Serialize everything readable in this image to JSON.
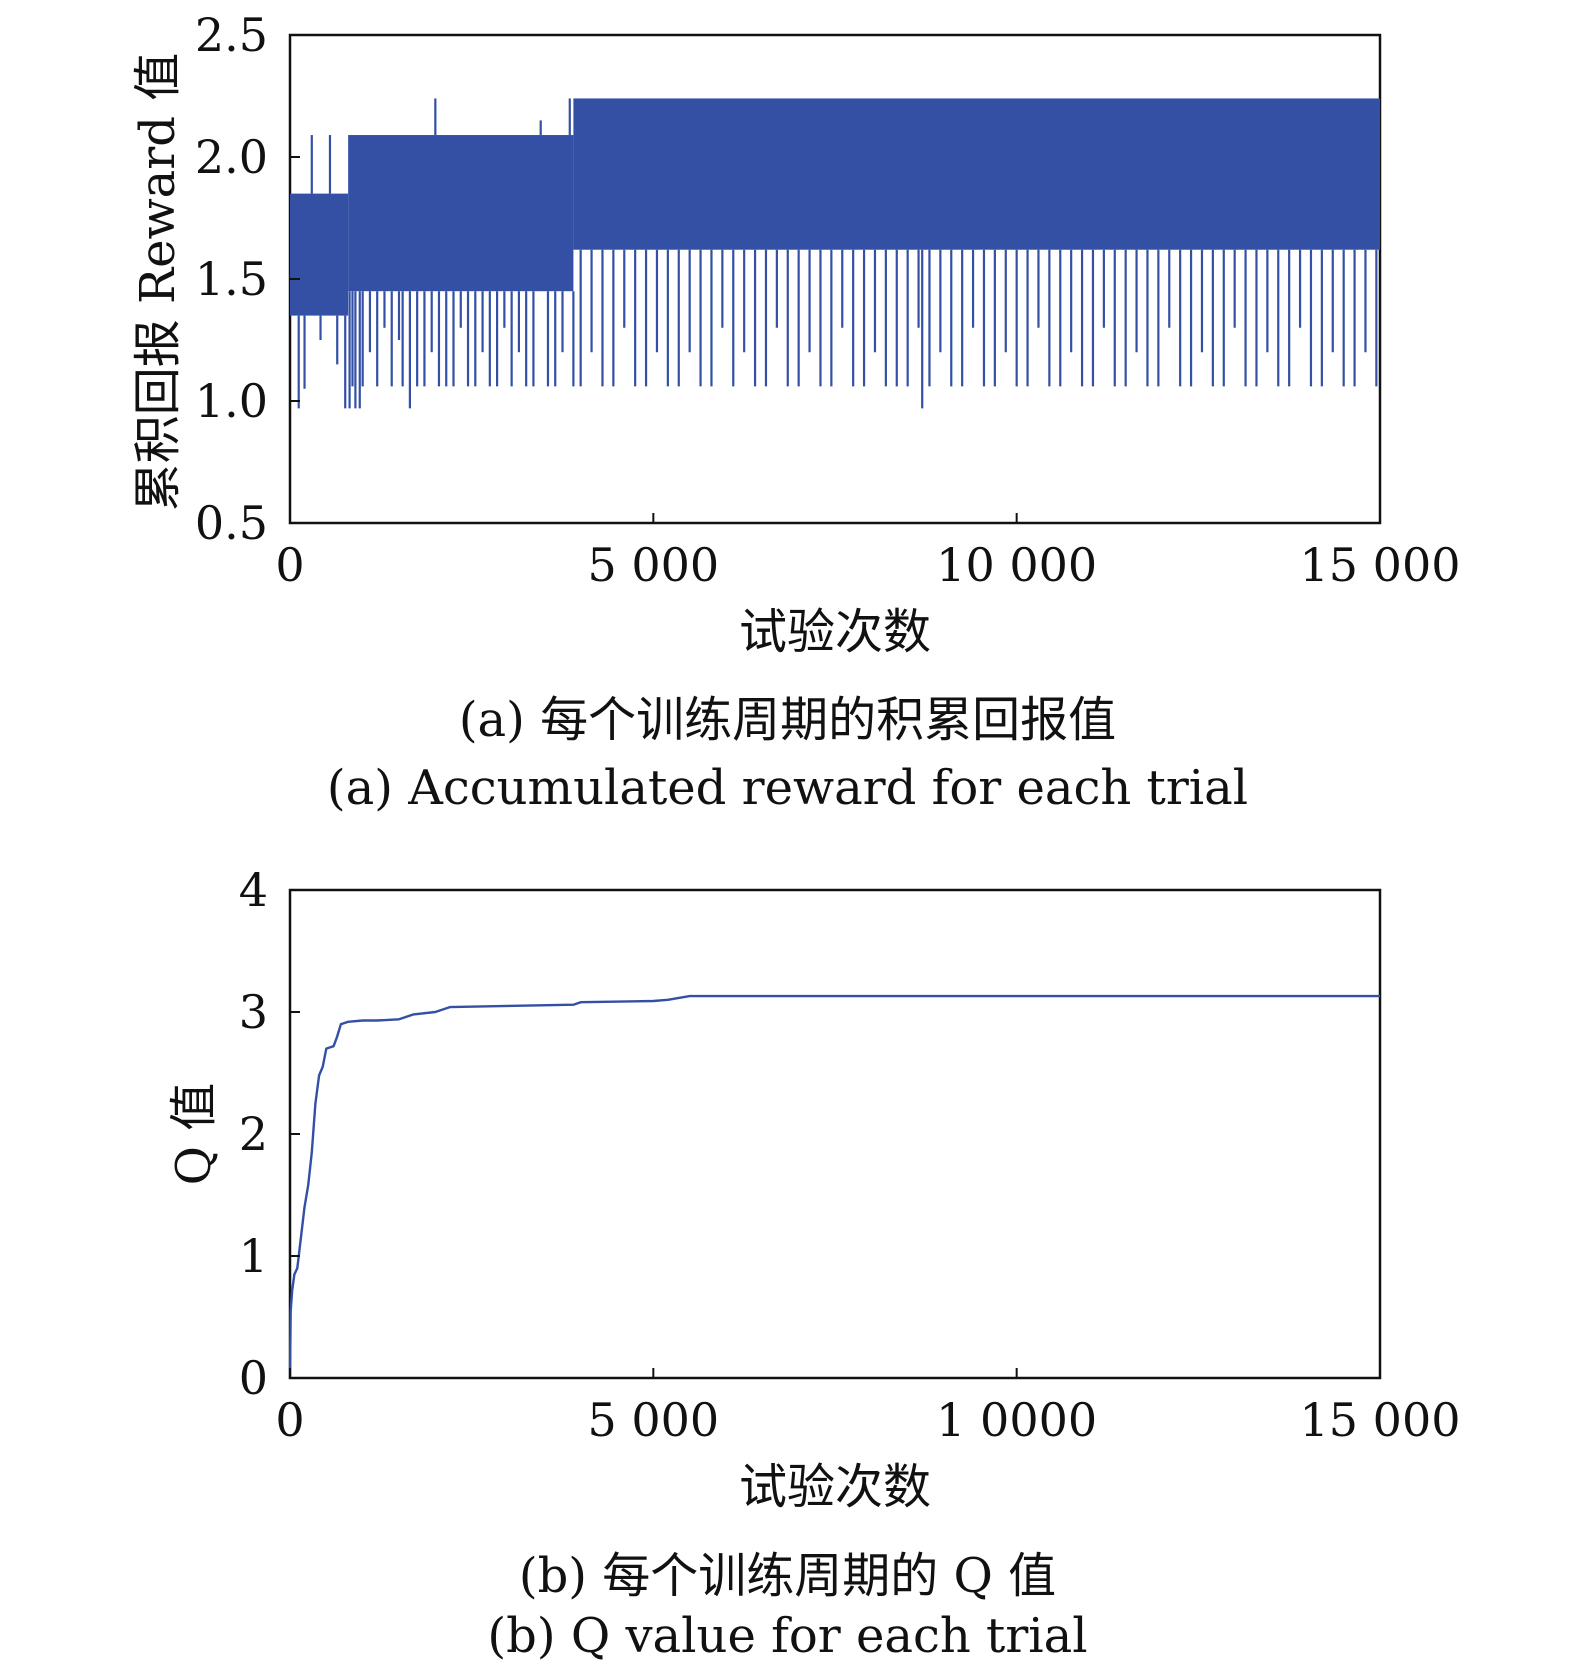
{
  "theme": {
    "line_color": "#3350a5",
    "axis_color": "#111111",
    "background": "#ffffff"
  },
  "figure": {
    "caption_a_cn": "(a) 每个训练周期的积累回报值",
    "caption_a_en": "(a) Accumulated reward for each trial",
    "caption_b_cn": "(b) 每个训练周期的 Q 值",
    "caption_b_en": "(b) Q value for each trial"
  },
  "chart_data": [
    {
      "id": "reward",
      "type": "line",
      "xlabel": "试验次数",
      "ylabel": "累积回报 Reward 值",
      "xlim": [
        0,
        15000
      ],
      "ylim": [
        0.5,
        2.5
      ],
      "xticks": [
        0,
        5000,
        10000,
        15000
      ],
      "xtick_labels": [
        "0",
        "5 000",
        "10 000",
        "15 000"
      ],
      "yticks": [
        0.5,
        1.0,
        1.5,
        2.0,
        2.5
      ],
      "ytick_labels": [
        "0.5",
        "1.0",
        "1.5",
        "2.0",
        "2.5"
      ],
      "grid": false,
      "series": [
        {
          "style": "dense oscillating band",
          "segments": [
            {
              "x_start": 0,
              "x_end": 800,
              "upper": 1.85,
              "lower": 1.35
            },
            {
              "x_start": 800,
              "x_end": 3900,
              "upper": 2.09,
              "lower": 1.45
            },
            {
              "x_start": 3900,
              "x_end": 15000,
              "upper": 2.24,
              "lower": 1.62
            }
          ],
          "dips": [
            [
              120,
              0.97
            ],
            [
              200,
              1.05
            ],
            [
              300,
              2.09
            ],
            [
              420,
              1.25
            ],
            [
              550,
              2.09
            ],
            [
              650,
              1.15
            ],
            [
              760,
              0.97
            ],
            [
              820,
              0.97
            ],
            [
              860,
              1.06
            ],
            [
              900,
              0.97
            ],
            [
              960,
              0.97
            ],
            [
              1000,
              1.06
            ],
            [
              1100,
              1.2
            ],
            [
              1200,
              1.06
            ],
            [
              1300,
              1.3
            ],
            [
              1400,
              1.06
            ],
            [
              1500,
              1.25
            ],
            [
              1550,
              1.06
            ],
            [
              1650,
              0.97
            ],
            [
              1750,
              1.06
            ],
            [
              1850,
              1.06
            ],
            [
              1950,
              1.2
            ],
            [
              2050,
              1.06
            ],
            [
              2000,
              2.24
            ],
            [
              2150,
              1.06
            ],
            [
              2250,
              1.06
            ],
            [
              2350,
              1.3
            ],
            [
              2450,
              1.06
            ],
            [
              2550,
              1.06
            ],
            [
              2650,
              1.2
            ],
            [
              2750,
              1.06
            ],
            [
              2850,
              1.06
            ],
            [
              2950,
              1.3
            ],
            [
              3050,
              1.06
            ],
            [
              3150,
              1.2
            ],
            [
              3250,
              1.06
            ],
            [
              3350,
              1.06
            ],
            [
              3450,
              2.15
            ],
            [
              3550,
              1.06
            ],
            [
              3650,
              1.06
            ],
            [
              3750,
              1.2
            ],
            [
              3850,
              2.24
            ],
            [
              3900,
              1.06
            ],
            [
              4000,
              1.06
            ],
            [
              4150,
              1.2
            ],
            [
              4300,
              1.06
            ],
            [
              4450,
              1.06
            ],
            [
              4600,
              1.3
            ],
            [
              4750,
              1.06
            ],
            [
              4900,
              1.06
            ],
            [
              5050,
              1.2
            ],
            [
              5200,
              1.06
            ],
            [
              5350,
              1.06
            ],
            [
              5500,
              1.2
            ],
            [
              5650,
              1.06
            ],
            [
              5800,
              1.06
            ],
            [
              5950,
              1.3
            ],
            [
              6100,
              1.06
            ],
            [
              6250,
              1.2
            ],
            [
              6400,
              1.06
            ],
            [
              6550,
              1.06
            ],
            [
              6700,
              1.3
            ],
            [
              6850,
              1.06
            ],
            [
              7000,
              1.06
            ],
            [
              7150,
              1.2
            ],
            [
              7300,
              1.06
            ],
            [
              7450,
              1.06
            ],
            [
              7600,
              1.3
            ],
            [
              7750,
              1.06
            ],
            [
              7900,
              1.06
            ],
            [
              8050,
              1.2
            ],
            [
              8200,
              1.06
            ],
            [
              8350,
              1.06
            ],
            [
              8500,
              1.06
            ],
            [
              8650,
              1.3
            ],
            [
              8700,
              0.97
            ],
            [
              8800,
              1.06
            ],
            [
              8950,
              1.2
            ],
            [
              9100,
              1.06
            ],
            [
              9250,
              1.06
            ],
            [
              9400,
              1.3
            ],
            [
              9550,
              1.06
            ],
            [
              9700,
              1.06
            ],
            [
              9850,
              1.2
            ],
            [
              10000,
              1.06
            ],
            [
              10150,
              1.06
            ],
            [
              10300,
              1.3
            ],
            [
              10450,
              1.06
            ],
            [
              10600,
              1.06
            ],
            [
              10750,
              1.2
            ],
            [
              10900,
              1.06
            ],
            [
              11050,
              1.06
            ],
            [
              11200,
              1.3
            ],
            [
              11350,
              1.06
            ],
            [
              11500,
              1.06
            ],
            [
              11650,
              1.2
            ],
            [
              11800,
              1.06
            ],
            [
              11950,
              1.06
            ],
            [
              12100,
              1.3
            ],
            [
              12250,
              1.06
            ],
            [
              12400,
              1.06
            ],
            [
              12550,
              1.2
            ],
            [
              12700,
              1.06
            ],
            [
              12850,
              1.06
            ],
            [
              13000,
              1.3
            ],
            [
              13150,
              1.06
            ],
            [
              13300,
              1.06
            ],
            [
              13450,
              1.2
            ],
            [
              13600,
              1.06
            ],
            [
              13750,
              1.06
            ],
            [
              13900,
              1.3
            ],
            [
              14050,
              1.06
            ],
            [
              14200,
              1.06
            ],
            [
              14350,
              1.2
            ],
            [
              14500,
              1.06
            ],
            [
              14650,
              1.06
            ],
            [
              14800,
              1.2
            ],
            [
              14950,
              1.06
            ]
          ]
        }
      ]
    },
    {
      "id": "qvalue",
      "type": "line",
      "xlabel": "试验次数",
      "ylabel": "Q 值",
      "xlim": [
        0,
        15000
      ],
      "ylim": [
        0,
        4
      ],
      "xticks": [
        0,
        5000,
        10000,
        15000
      ],
      "xtick_labels": [
        "0",
        "5 000",
        "1 0000",
        "15 000"
      ],
      "yticks": [
        0,
        1,
        2,
        3,
        4
      ],
      "ytick_labels": [
        "0",
        "1",
        "2",
        "3",
        "4"
      ],
      "grid": false,
      "series": [
        {
          "x": [
            0,
            10,
            30,
            60,
            100,
            150,
            200,
            250,
            300,
            350,
            400,
            450,
            500,
            550,
            600,
            650,
            700,
            750,
            800,
            1000,
            1200,
            1500,
            1700,
            2000,
            2200,
            3000,
            3900,
            4000,
            5000,
            5200,
            5500,
            6000,
            8000,
            10000,
            12000,
            15000
          ],
          "y": [
            0,
            0.55,
            0.72,
            0.85,
            0.9,
            1.15,
            1.4,
            1.58,
            1.85,
            2.25,
            2.48,
            2.55,
            2.7,
            2.71,
            2.72,
            2.8,
            2.9,
            2.91,
            2.92,
            2.93,
            2.93,
            2.94,
            2.98,
            3.0,
            3.04,
            3.05,
            3.06,
            3.08,
            3.09,
            3.1,
            3.13,
            3.13,
            3.13,
            3.13,
            3.13,
            3.13
          ]
        }
      ]
    }
  ]
}
